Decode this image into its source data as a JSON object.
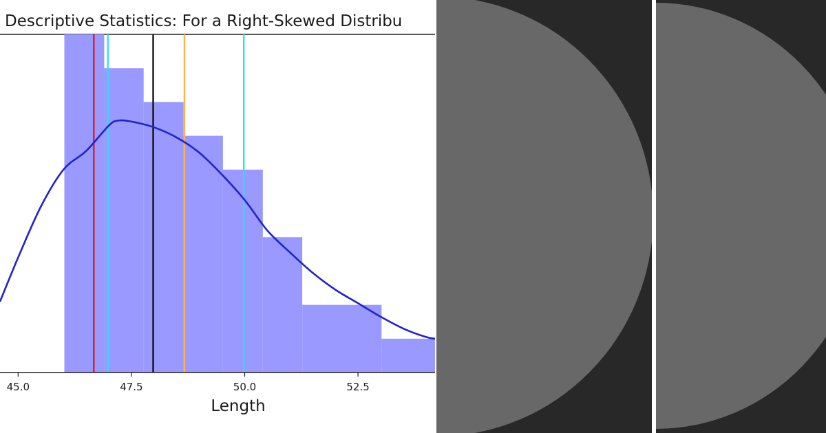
{
  "chart_data": {
    "type": "bar",
    "title": "Descriptive Statistics: For a Right-Skewed Distribu",
    "xlabel": "Length",
    "ylabel": "",
    "xlim": [
      44.6,
      54.2
    ],
    "ylim": [
      0,
      10
    ],
    "x_ticks": [
      45.0,
      47.5,
      50.0,
      52.5
    ],
    "x_tick_labels": [
      "45.0",
      "47.5",
      "50.0",
      "52.5"
    ],
    "bar_color": "#9999ff",
    "bins": [
      {
        "x0": 46.02,
        "x1": 46.9,
        "count": 10
      },
      {
        "x0": 46.9,
        "x1": 47.77,
        "count": 9
      },
      {
        "x0": 47.77,
        "x1": 48.65,
        "count": 8
      },
      {
        "x0": 48.65,
        "x1": 49.52,
        "count": 7
      },
      {
        "x0": 49.52,
        "x1": 50.4,
        "count": 6
      },
      {
        "x0": 50.4,
        "x1": 51.27,
        "count": 4
      },
      {
        "x0": 51.27,
        "x1": 53.02,
        "count": 2
      },
      {
        "x0": 53.02,
        "x1": 54.2,
        "count": 1
      }
    ],
    "density_curve": {
      "color": "#2222cc",
      "x": [
        44.6,
        45.0,
        45.5,
        46.0,
        46.5,
        47.0,
        47.2,
        47.5,
        48.0,
        48.5,
        49.0,
        49.5,
        50.0,
        50.5,
        51.0,
        51.5,
        52.0,
        52.5,
        53.0,
        53.5,
        54.0,
        54.2
      ],
      "y": [
        2.1,
        3.4,
        4.9,
        6.0,
        6.55,
        7.3,
        7.45,
        7.42,
        7.25,
        6.95,
        6.5,
        5.85,
        5.1,
        4.2,
        3.55,
        2.95,
        2.45,
        2.05,
        1.65,
        1.3,
        1.05,
        1.0
      ]
    },
    "vlines": [
      {
        "x": 46.67,
        "color": "#dd1c1c"
      },
      {
        "x": 46.98,
        "color": "#33ddee"
      },
      {
        "x": 47.98,
        "color": "#111111"
      },
      {
        "x": 48.67,
        "color": "#ffb347"
      },
      {
        "x": 49.98,
        "color": "#33ddee"
      }
    ],
    "grid": false,
    "legend": "none"
  }
}
